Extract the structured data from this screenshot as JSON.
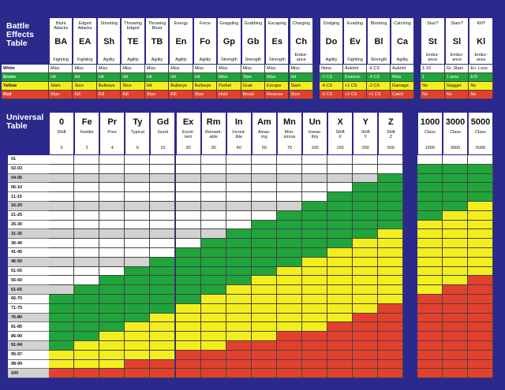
{
  "battle_effects": {
    "title": "Battle\nEffects\nTable",
    "row_labels": [
      "White",
      "Green",
      "Yellow",
      "Red"
    ],
    "row_colors": [
      "#ffffff",
      "#1fa53b",
      "#f3ee1e",
      "#e4402e"
    ],
    "groups": [
      [
        {
          "name": "Blunt\nAttacks",
          "abbr": "BA",
          "ability": "Fighting",
          "results": [
            "Miss",
            "Hit",
            "Slam",
            "Stun"
          ]
        },
        {
          "name": "Edged\nAttacks",
          "abbr": "EA",
          "ability": "Fighting",
          "results": [
            "Miss",
            "Hit",
            "Stun",
            "Kill"
          ]
        },
        {
          "name": "Shooting",
          "abbr": "Sh",
          "ability": "Agility",
          "results": [
            "Miss",
            "Hit",
            "Bullseye",
            "Kill"
          ]
        },
        {
          "name": "Throwing\nEdged",
          "abbr": "TE",
          "ability": "Agility",
          "results": [
            "Miss",
            "Hit",
            "Stun",
            "Kill"
          ]
        },
        {
          "name": "Throwing\nBlunt",
          "abbr": "TB",
          "ability": "Agility",
          "results": [
            "Miss",
            "Hit",
            "Hit",
            "Stun"
          ]
        },
        {
          "name": "Energy",
          "abbr": "En",
          "ability": "Agility",
          "results": [
            "Miss",
            "Hit",
            "Bullseye",
            "Kill"
          ]
        },
        {
          "name": "Force",
          "abbr": "Fo",
          "ability": "Agility",
          "results": [
            "Miss",
            "Hit",
            "Bullseye",
            "Stun"
          ]
        },
        {
          "name": "Grappling",
          "abbr": "Gp",
          "ability": "Strength",
          "results": [
            "Miss",
            "Miss",
            "Partial",
            "Hold"
          ]
        },
        {
          "name": "Grabbing",
          "abbr": "Gb",
          "ability": "Strength",
          "results": [
            "Miss",
            "Take",
            "Grab",
            "Break"
          ]
        },
        {
          "name": "Escaping",
          "abbr": "Es",
          "ability": "Strength",
          "results": [
            "Miss",
            "Miss",
            "Escape",
            "Reverse"
          ]
        },
        {
          "name": "Charging",
          "abbr": "Ch",
          "ability": "Endur-\nance",
          "results": [
            "Miss",
            "Hit",
            "Slam",
            "Stun"
          ]
        }
      ],
      [
        {
          "name": "Dodging",
          "abbr": "Do",
          "ability": "Agility",
          "results": [
            "None",
            "-2 CS",
            "-4 CS",
            "-6 CS"
          ]
        },
        {
          "name": "Evading",
          "abbr": "Ev",
          "ability": "Fighting",
          "results": [
            "Autohit",
            "Evasion",
            "+1 CS",
            "+2 CS"
          ]
        },
        {
          "name": "Blocking",
          "abbr": "Bl",
          "ability": "Strength",
          "results": [
            "-6 CS",
            "-4 CS",
            "-2 CS",
            "+1 CS"
          ]
        },
        {
          "name": "Catching",
          "abbr": "Ca",
          "ability": "Agility",
          "results": [
            "Autohit",
            "Miss",
            "Damage",
            "Catch"
          ]
        }
      ],
      [
        {
          "name": "Stun?",
          "abbr": "St",
          "ability": "Endur-\nance",
          "results": [
            "1-10",
            "1",
            "No",
            "No"
          ]
        },
        {
          "name": "Slam?",
          "abbr": "Sl",
          "ability": "Endur-\nance",
          "results": [
            "Gr. Slam",
            "1 area",
            "Stagger",
            "No"
          ]
        },
        {
          "name": "Kill?",
          "abbr": "Kl",
          "ability": "Endur-\nance",
          "results": [
            "En. Loss",
            "E/S",
            "No",
            "No"
          ]
        }
      ]
    ]
  },
  "universal_table": {
    "title": "Universal\nTable",
    "palette": {
      "W": "#ffffff",
      "G": "#1fa53b",
      "Y": "#f3ee1e",
      "R": "#e4402e"
    },
    "rows": [
      "01",
      "02-03",
      "04-05",
      "06-10",
      "11-15",
      "16-20",
      "21-25",
      "26-30",
      "31-35",
      "36-40",
      "41-45",
      "46-50",
      "51-55",
      "56-60",
      "61-65",
      "66-70",
      "71-75",
      "76-80",
      "81-85",
      "86-90",
      "91-94",
      "95-97",
      "98-99",
      "100"
    ],
    "groups": [
      [
        {
          "abbr": "0",
          "name": "Shift",
          "number": 0,
          "cells": "WWWWWWWWWWWWWWWGGGGGGYYR"
        },
        {
          "abbr": "Fe",
          "name": "Feeble",
          "number": 2,
          "cells": "WWWWWWWWWWWWWWGGGGGGYYYR"
        },
        {
          "abbr": "Pr",
          "name": "Poor",
          "number": 4,
          "cells": "WWWWWWWWWWWWWGGGGGGYYYYR"
        },
        {
          "abbr": "Ty",
          "name": "Typical",
          "number": 6,
          "cells": "WWWWWWWWWWWWGGGGGGYYYYRR"
        },
        {
          "abbr": "Gd",
          "name": "Good",
          "number": 10,
          "cells": "WWWWWWWWWWWGGGGGGYYYYYRR"
        },
        {
          "abbr": "Ex",
          "name": "Excel-\nlent",
          "number": 20,
          "cells": "WWWWWWWWWWGGGGGGYYYYYRRR"
        },
        {
          "abbr": "Rm",
          "name": "Remark-\nable",
          "number": 30,
          "cells": "WWWWWWWWWGGGGGGYYYYYYRRR"
        },
        {
          "abbr": "In",
          "name": "Incred-\nible",
          "number": 40,
          "cells": "WWWWWWWWGGGGGGYYYYYYRRRR"
        },
        {
          "abbr": "Am",
          "name": "Amaz-\ning",
          "number": 50,
          "cells": "WWWWWWWGGGGGGYYYYYYYRRRR"
        },
        {
          "abbr": "Mn",
          "name": "Mon-\nstrous",
          "number": 75,
          "cells": "WWWWWWGGGGGGYYYYYYYRRRRR"
        },
        {
          "abbr": "Un",
          "name": "Unear-\nthly",
          "number": 100,
          "cells": "WWWWWGGGGGGYYYYYYYYRRRRR"
        },
        {
          "abbr": "X",
          "name": "Shift\nX",
          "number": 150,
          "cells": "WWWWGGGGGGYYYYYYYYRRRRRR"
        },
        {
          "abbr": "Y",
          "name": "Shift\nY",
          "number": 200,
          "cells": "WWWGGGGGGYYYYYYYYRRRRRRR"
        },
        {
          "abbr": "Z",
          "name": "Shift\nZ",
          "number": 500,
          "cells": "WWGGGGGGYYYYYYYYRRRRRRRR"
        }
      ],
      [
        {
          "abbr": "1000",
          "name": "Class",
          "number": 1000,
          "cells": "WGGGGGGYYYYYYYYRRRRRRRRR"
        },
        {
          "abbr": "3000",
          "name": "Class",
          "number": 3000,
          "cells": "WGGGGGYYYYYYYYRRRRRRRRRR"
        },
        {
          "abbr": "5000",
          "name": "Class",
          "number": 5000,
          "cells": "WGGGGYYYYYYYYRRRRRRRRRRR"
        }
      ]
    ]
  }
}
